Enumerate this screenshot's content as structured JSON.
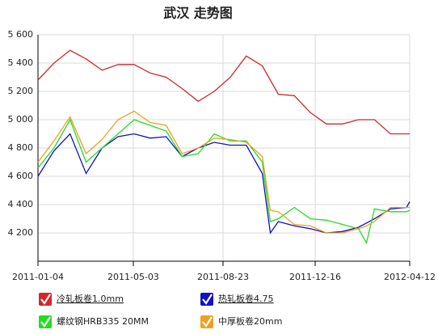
{
  "chart_data": {
    "type": "line",
    "title": "武汉 走势图",
    "x": [
      "2011-01-04",
      "2011-01-24",
      "2011-02-13",
      "2011-03-05",
      "2011-03-25",
      "2011-04-14",
      "2011-05-04",
      "2011-05-24",
      "2011-06-13",
      "2011-07-03",
      "2011-07-23",
      "2011-08-12",
      "2011-09-01",
      "2011-09-21",
      "2011-10-11",
      "2011-10-21",
      "2011-10-31",
      "2011-11-20",
      "2011-12-10",
      "2011-12-30",
      "2012-01-19",
      "2012-02-08",
      "2012-02-18",
      "2012-02-28",
      "2012-03-19",
      "2012-04-08",
      "2012-04-12"
    ],
    "series": [
      {
        "name": "冷轧板卷1.0mm",
        "color": "#d62728",
        "values": [
          5280,
          5400,
          5490,
          5430,
          5350,
          5390,
          5390,
          5330,
          5300,
          5220,
          5130,
          5200,
          5300,
          5450,
          5380,
          5280,
          5180,
          5170,
          5050,
          4970,
          4970,
          5000,
          5000,
          5000,
          4900,
          4900,
          4900
        ]
      },
      {
        "name": "热轧板卷4.75",
        "color": "#1010c8",
        "values": [
          4600,
          4780,
          4900,
          4620,
          4800,
          4880,
          4900,
          4870,
          4880,
          4740,
          4800,
          4840,
          4820,
          4820,
          4620,
          4200,
          4280,
          4250,
          4230,
          4200,
          4210,
          4240,
          4270,
          4300,
          4370,
          4380,
          4420
        ]
      },
      {
        "name": "螺纹钢HRB335 20MM",
        "color": "#22dd22",
        "values": [
          4660,
          4800,
          5000,
          4700,
          4800,
          4900,
          5000,
          4960,
          4920,
          4740,
          4760,
          4900,
          4850,
          4850,
          4700,
          4280,
          4300,
          4380,
          4300,
          4290,
          4260,
          4230,
          4130,
          4370,
          4350,
          4350,
          4360
        ]
      },
      {
        "name": "中厚板卷20mm",
        "color": "#f0a020",
        "values": [
          4700,
          4850,
          5020,
          4760,
          4860,
          5000,
          5060,
          4980,
          4960,
          4760,
          4800,
          4870,
          4860,
          4840,
          4740,
          4360,
          4350,
          4260,
          4250,
          4200,
          4200,
          4230,
          4250,
          4280,
          4380,
          4380,
          4380
        ]
      }
    ],
    "xlim": [
      "2011-01-04",
      "2012-04-12"
    ],
    "xticks": [
      "2011-01-04",
      "2011-05-03",
      "2011-08-23",
      "2011-12-16",
      "2012-04-12"
    ],
    "ylim": [
      4000,
      5600
    ],
    "yticks": [
      {
        "value": 4200,
        "label": "4 200"
      },
      {
        "value": 4400,
        "label": "4 400"
      },
      {
        "value": 4600,
        "label": "4 600"
      },
      {
        "value": 4800,
        "label": "4 800"
      },
      {
        "value": 5000,
        "label": "5 000"
      },
      {
        "value": 5200,
        "label": "5 200"
      },
      {
        "value": 5400,
        "label": "5 400"
      },
      {
        "value": 5600,
        "label": "5 600"
      }
    ],
    "grid": true
  }
}
